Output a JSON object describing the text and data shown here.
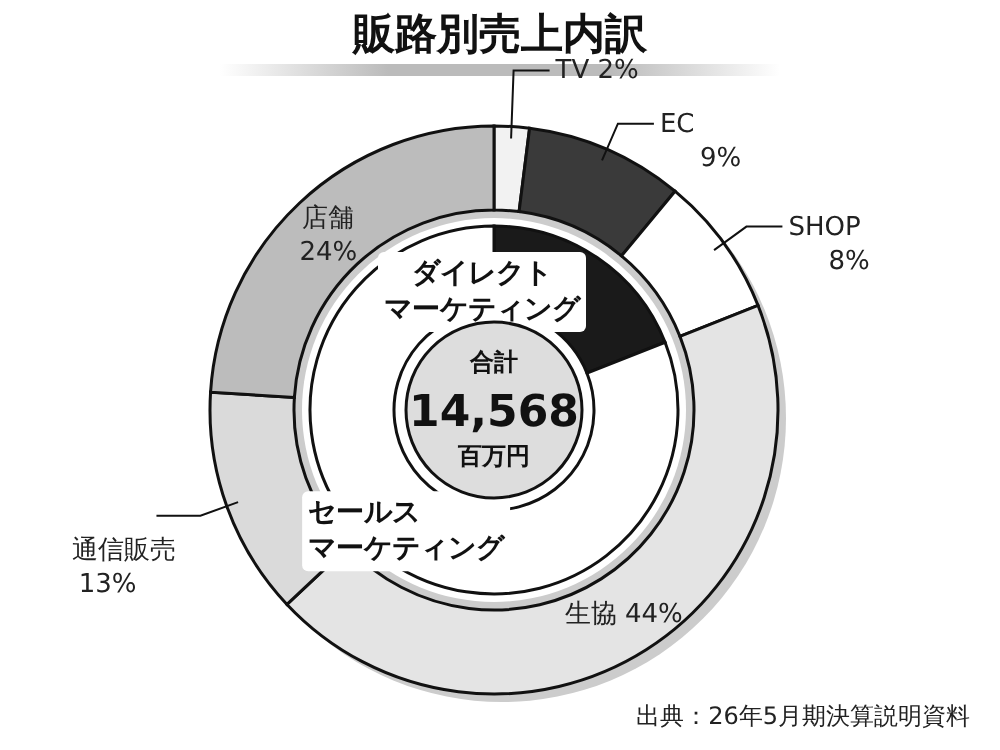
{
  "chart_data": [
    {
      "type": "donut",
      "title": "販路別売上内訳",
      "categories": [
        "TV",
        "EC",
        "SHOP",
        "生協",
        "通信販売",
        "店舗"
      ],
      "values": [
        2,
        9,
        8,
        44,
        13,
        24
      ],
      "colors": [
        "#f2f2f2",
        "#3a3a3a",
        "#ffffff",
        "#e4e4e4",
        "#dadada",
        "#bcbcbc"
      ],
      "value_labels": [
        "2%",
        "9%",
        "8%",
        "44%",
        "13%",
        "24%"
      ],
      "annotations": [
        "合計",
        "14,568",
        "百万円",
        "出典：26年5月期決算説明資料"
      ]
    },
    {
      "type": "donut",
      "categories": [
        "ダイレクトマーケティング",
        "セールスマーケティング"
      ],
      "values": [
        19,
        81
      ],
      "colors": [
        "#1a1a1a",
        "#ffffff"
      ]
    }
  ]
}
